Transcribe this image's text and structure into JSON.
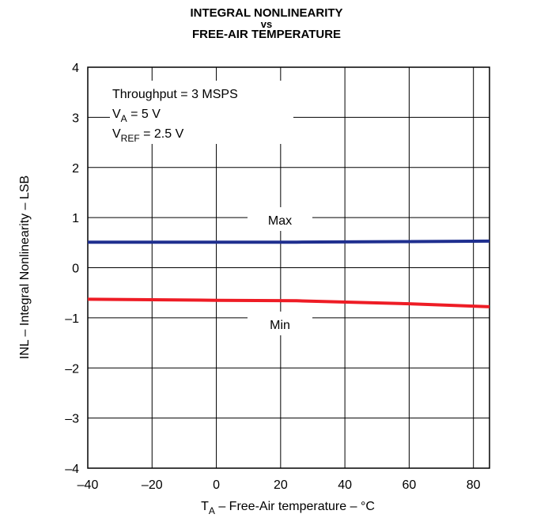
{
  "chart_data": {
    "type": "line",
    "title": {
      "line1": "INTEGRAL NONLINEARITY",
      "line2": "vs",
      "line3": "FREE-AIR TEMPERATURE"
    },
    "xlabel": {
      "main": "T",
      "sub": "A",
      "rest": " – Free-Air temperature – °C"
    },
    "ylabel": "INL – Integral Nonlinearity – LSB",
    "xlim": [
      -40,
      85
    ],
    "ylim": [
      -4,
      4
    ],
    "x_ticks": [
      -40,
      -20,
      0,
      20,
      40,
      60,
      80
    ],
    "x_tick_labels": [
      "–40",
      "–20",
      "0",
      "20",
      "40",
      "60",
      "80"
    ],
    "y_ticks": [
      4,
      3,
      2,
      1,
      0,
      -1,
      -2,
      -3,
      -4
    ],
    "y_tick_labels": [
      "4",
      "3",
      "2",
      "1",
      "0",
      "–1",
      "–2",
      "–3",
      "–4"
    ],
    "grid": true,
    "conditions": [
      {
        "main": "Throughput = 3 MSPS",
        "sub": "",
        "rest": ""
      },
      {
        "main": "V",
        "sub": "A",
        "rest": " = 5 V"
      },
      {
        "main": "V",
        "sub": "REF",
        "rest": " = 2.5 V"
      }
    ],
    "series": [
      {
        "name": "Max",
        "color": "#1f2f8f",
        "x": [
          -40,
          0,
          25,
          60,
          85
        ],
        "y": [
          0.51,
          0.51,
          0.51,
          0.52,
          0.53
        ]
      },
      {
        "name": "Min",
        "color": "#ee1c25",
        "x": [
          -40,
          0,
          25,
          60,
          85
        ],
        "y": [
          -0.63,
          -0.65,
          -0.66,
          -0.72,
          -0.78
        ]
      }
    ]
  }
}
